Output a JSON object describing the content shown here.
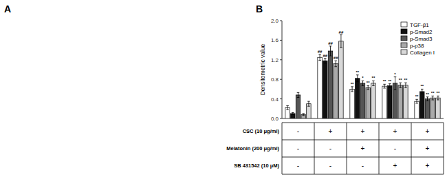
{
  "chart_data": {
    "type": "bar",
    "panel_label": "A",
    "title": "B",
    "ylabel": "Densitometric value",
    "categories": [
      null,
      null,
      null,
      null,
      null
    ],
    "series": [
      {
        "name": "TGF-β1",
        "color": "#ffffff",
        "edge_color": "#000000",
        "values": [
          0.22,
          1.25,
          0.6,
          0.66,
          0.35
        ],
        "errors": [
          0.04,
          0.06,
          0.05,
          0.04,
          0.04
        ],
        "annotations": [
          null,
          "##",
          "**",
          "**",
          "**"
        ]
      },
      {
        "name": "p-Smad2",
        "color": "#111111",
        "edge_color": "#000000",
        "values": [
          0.1,
          1.18,
          0.82,
          0.67,
          0.55
        ],
        "errors": [
          0.02,
          0.05,
          0.07,
          0.04,
          0.05
        ],
        "annotations": [
          null,
          "##",
          "**",
          "**",
          "**"
        ]
      },
      {
        "name": "p-Smad3",
        "color": "#555555",
        "edge_color": "#000000",
        "values": [
          0.48,
          1.38,
          0.72,
          0.72,
          0.4
        ],
        "errors": [
          0.05,
          0.1,
          0.05,
          0.13,
          0.04
        ],
        "annotations": [
          null,
          "##",
          "*",
          "*",
          "**"
        ]
      },
      {
        "name": "p-p38",
        "color": "#aaaaaa",
        "edge_color": "#000000",
        "values": [
          0.08,
          1.12,
          0.63,
          0.68,
          0.42
        ],
        "errors": [
          0.02,
          0.06,
          0.04,
          0.05,
          0.04
        ],
        "annotations": [
          null,
          "##",
          "**",
          "**",
          "**"
        ]
      },
      {
        "name": "Collagen I",
        "color": "#d8d8d8",
        "edge_color": "#000000",
        "values": [
          0.3,
          1.58,
          0.72,
          0.68,
          0.42
        ],
        "errors": [
          0.05,
          0.13,
          0.05,
          0.05,
          0.04
        ],
        "annotations": [
          null,
          "##",
          "**",
          "**",
          "**"
        ]
      }
    ],
    "table": [
      {
        "label": "CSC (10 μg/ml)",
        "values": [
          "-",
          "+",
          "+",
          "+",
          "+"
        ]
      },
      {
        "label": "Melatonin (200 μg/ml)",
        "values": [
          "-",
          "-",
          "+",
          "-",
          "+"
        ]
      },
      {
        "label": "SB 431542 (10 μM)",
        "values": [
          "-",
          "-",
          "-",
          "+",
          "+"
        ]
      }
    ],
    "ylim": [
      0,
      2.0
    ],
    "yticks": [
      {
        "value": 0,
        "label": "0.0"
      },
      0.4,
      0.8,
      1.2,
      1.6,
      {
        "value": 2,
        "label": "2.0"
      }
    ],
    "grid": false,
    "legend": "upper right"
  }
}
